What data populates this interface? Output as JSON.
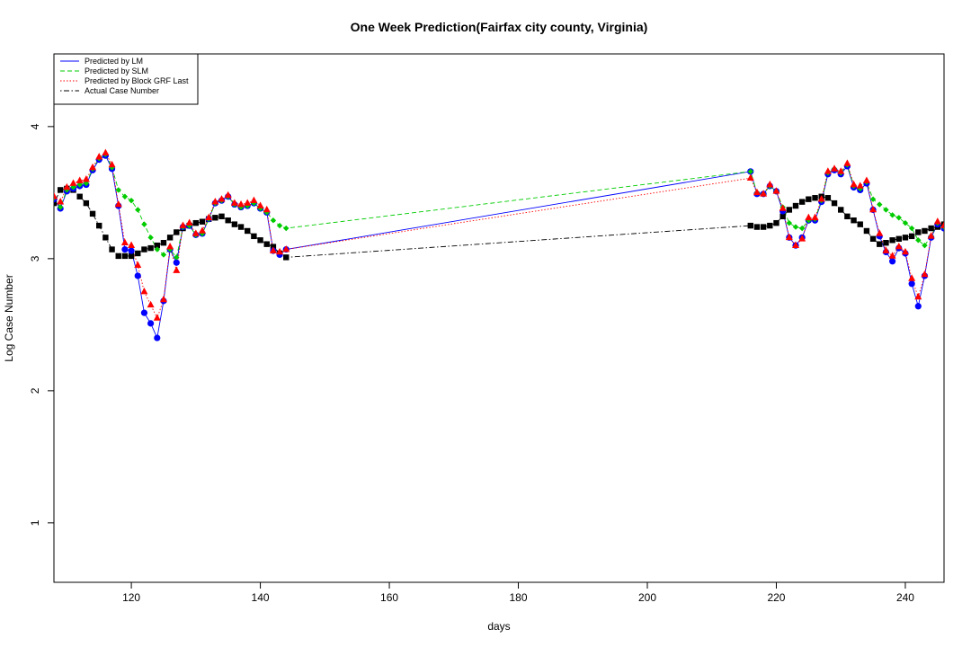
{
  "chart_data": {
    "type": "line",
    "title": "One Week Prediction(Fairfax city county, Virginia)",
    "xlabel": "days",
    "ylabel": "Log Case Number",
    "xlim": [
      108,
      246
    ],
    "ylim": [
      0.55,
      4.55
    ],
    "x_ticks": [
      120,
      140,
      160,
      180,
      200,
      220,
      240
    ],
    "y_ticks": [
      1,
      2,
      3,
      4
    ],
    "grid": false,
    "legend_position": "top-left",
    "x": [
      108,
      109,
      110,
      111,
      112,
      113,
      114,
      115,
      116,
      117,
      118,
      119,
      120,
      121,
      122,
      123,
      124,
      125,
      126,
      127,
      128,
      129,
      130,
      131,
      132,
      133,
      134,
      135,
      136,
      137,
      138,
      139,
      140,
      141,
      142,
      143,
      144,
      216,
      217,
      218,
      219,
      220,
      221,
      222,
      223,
      224,
      225,
      226,
      227,
      228,
      229,
      230,
      231,
      232,
      233,
      234,
      235,
      236,
      237,
      238,
      239,
      240,
      241,
      242,
      243,
      244,
      245,
      246
    ],
    "series": [
      {
        "name": "Predicted by LM",
        "color": "#0000ff",
        "line_style": "solid",
        "marker": "circle",
        "values": [
          3.45,
          3.38,
          3.51,
          3.53,
          3.55,
          3.56,
          3.67,
          3.75,
          3.78,
          3.68,
          3.4,
          3.07,
          3.06,
          2.87,
          2.59,
          2.51,
          2.4,
          2.68,
          3.07,
          2.97,
          3.24,
          3.25,
          3.18,
          3.19,
          3.3,
          3.42,
          3.44,
          3.47,
          3.41,
          3.39,
          3.4,
          3.42,
          3.38,
          3.35,
          3.06,
          3.03,
          3.07,
          3.66,
          3.49,
          3.49,
          3.55,
          3.51,
          3.36,
          3.16,
          3.1,
          3.16,
          3.29,
          3.29,
          3.43,
          3.64,
          3.67,
          3.64,
          3.7,
          3.54,
          3.52,
          3.57,
          3.37,
          3.17,
          3.05,
          2.98,
          3.08,
          3.04,
          2.81,
          2.64,
          2.87,
          3.16,
          3.26,
          3.23
        ]
      },
      {
        "name": "Predicted by SLM",
        "color": "#00cc00",
        "line_style": "dashed",
        "marker": "diamond",
        "values": [
          3.46,
          3.39,
          3.52,
          3.54,
          3.56,
          3.57,
          3.68,
          3.76,
          3.79,
          3.69,
          3.52,
          3.47,
          3.44,
          3.37,
          3.26,
          3.16,
          3.07,
          3.03,
          3.07,
          3.01,
          3.24,
          3.25,
          3.18,
          3.19,
          3.3,
          3.42,
          3.44,
          3.47,
          3.41,
          3.39,
          3.4,
          3.42,
          3.38,
          3.35,
          3.29,
          3.25,
          3.23,
          3.66,
          3.5,
          3.49,
          3.55,
          3.51,
          3.39,
          3.27,
          3.24,
          3.23,
          3.29,
          3.3,
          3.44,
          3.65,
          3.68,
          3.65,
          3.71,
          3.55,
          3.53,
          3.58,
          3.45,
          3.41,
          3.37,
          3.33,
          3.31,
          3.27,
          3.23,
          3.14,
          3.1,
          3.17,
          3.27,
          3.24
        ]
      },
      {
        "name": "Predicted by Block GRF Last",
        "color": "#ff0000",
        "line_style": "dotted",
        "marker": "triangle",
        "values": [
          3.47,
          3.43,
          3.54,
          3.57,
          3.59,
          3.6,
          3.69,
          3.77,
          3.8,
          3.71,
          3.41,
          3.12,
          3.1,
          2.95,
          2.75,
          2.65,
          2.55,
          2.69,
          3.09,
          2.91,
          3.25,
          3.27,
          3.19,
          3.21,
          3.31,
          3.43,
          3.45,
          3.48,
          3.42,
          3.41,
          3.42,
          3.44,
          3.4,
          3.37,
          3.06,
          3.05,
          3.07,
          3.61,
          3.5,
          3.49,
          3.56,
          3.51,
          3.38,
          3.16,
          3.1,
          3.15,
          3.31,
          3.31,
          3.45,
          3.66,
          3.68,
          3.66,
          3.72,
          3.56,
          3.55,
          3.59,
          3.37,
          3.19,
          3.06,
          3.02,
          3.09,
          3.05,
          2.85,
          2.71,
          2.88,
          3.17,
          3.28,
          3.25
        ]
      },
      {
        "name": "Actual Case Number",
        "color": "#000000",
        "line_style": "dotdash",
        "marker": "square",
        "values": [
          3.42,
          3.52,
          3.53,
          3.52,
          3.47,
          3.42,
          3.34,
          3.25,
          3.16,
          3.07,
          3.02,
          3.02,
          3.02,
          3.04,
          3.07,
          3.08,
          3.1,
          3.12,
          3.16,
          3.2,
          3.23,
          3.25,
          3.27,
          3.28,
          3.3,
          3.31,
          3.32,
          3.29,
          3.26,
          3.24,
          3.21,
          3.17,
          3.14,
          3.11,
          3.09,
          3.04,
          3.01,
          3.25,
          3.24,
          3.24,
          3.25,
          3.27,
          3.32,
          3.37,
          3.4,
          3.43,
          3.45,
          3.46,
          3.47,
          3.46,
          3.42,
          3.37,
          3.32,
          3.29,
          3.26,
          3.21,
          3.15,
          3.11,
          3.12,
          3.14,
          3.15,
          3.16,
          3.17,
          3.2,
          3.21,
          3.23,
          3.24,
          3.26
        ]
      }
    ]
  }
}
